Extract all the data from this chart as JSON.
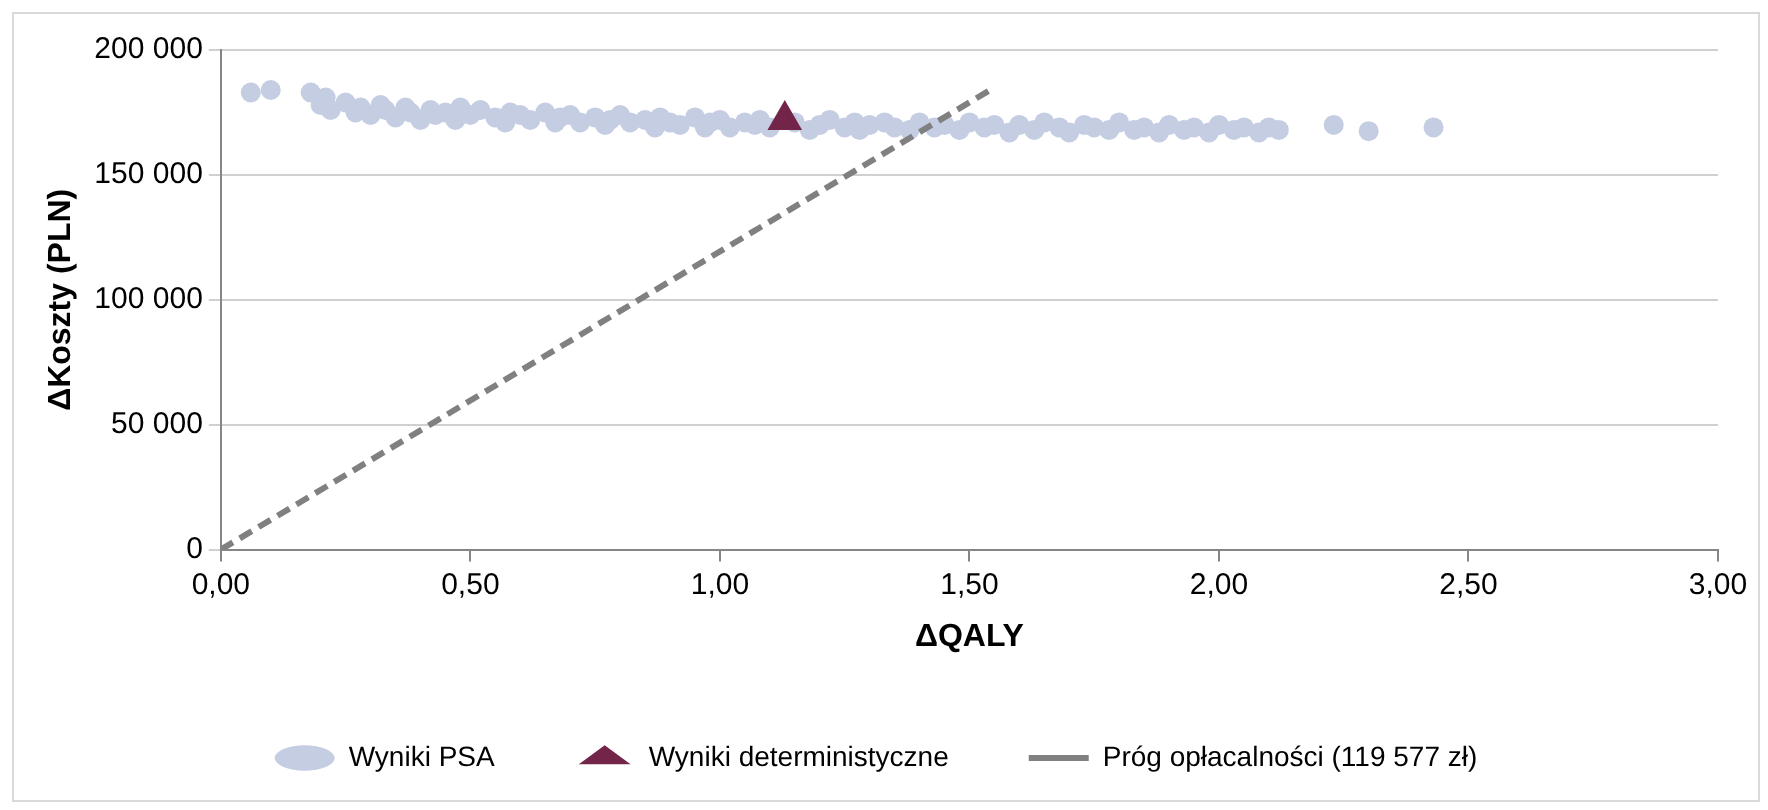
{
  "chart_data": {
    "type": "scatter",
    "xlabel": "ΔQALY",
    "ylabel": "ΔKoszty (PLN)",
    "xlim": [
      0,
      3
    ],
    "xticks": [
      {
        "value": 0,
        "label": "0,00"
      },
      {
        "value": 0.5,
        "label": "0,50"
      },
      {
        "value": 1,
        "label": "1,00"
      },
      {
        "value": 1.5,
        "label": "1,50"
      },
      {
        "value": 2,
        "label": "2,00"
      },
      {
        "value": 2.5,
        "label": "2,50"
      },
      {
        "value": 3,
        "label": "3,00"
      }
    ],
    "ylim": [
      0,
      200000
    ],
    "yticks": [
      0,
      {
        "value": 50000,
        "label": "50 000"
      },
      {
        "value": 100000,
        "label": "100 000"
      },
      {
        "value": 150000,
        "label": "150 000"
      },
      {
        "value": 200000,
        "label": "200 000"
      }
    ],
    "grid": "y",
    "legend": "bottom",
    "series": [
      {
        "name": "Wyniki PSA",
        "marker": "circle",
        "color": "#c5cde3",
        "x": [
          0.06,
          0.1,
          0.18,
          0.2,
          0.21,
          0.22,
          0.25,
          0.27,
          0.28,
          0.3,
          0.32,
          0.33,
          0.35,
          0.37,
          0.38,
          0.4,
          0.42,
          0.43,
          0.45,
          0.47,
          0.48,
          0.5,
          0.52,
          0.55,
          0.57,
          0.58,
          0.6,
          0.62,
          0.65,
          0.67,
          0.68,
          0.7,
          0.72,
          0.75,
          0.77,
          0.78,
          0.8,
          0.82,
          0.85,
          0.87,
          0.88,
          0.9,
          0.92,
          0.95,
          0.97,
          0.98,
          1.0,
          1.02,
          1.05,
          1.07,
          1.08,
          1.1,
          1.15,
          1.18,
          1.2,
          1.22,
          1.25,
          1.27,
          1.28,
          1.3,
          1.33,
          1.35,
          1.38,
          1.4,
          1.43,
          1.45,
          1.48,
          1.5,
          1.53,
          1.55,
          1.58,
          1.6,
          1.63,
          1.65,
          1.68,
          1.7,
          1.73,
          1.75,
          1.78,
          1.8,
          1.83,
          1.85,
          1.88,
          1.9,
          1.93,
          1.95,
          1.98,
          2.0,
          2.03,
          2.05,
          2.08,
          2.1,
          2.12,
          2.23,
          2.3,
          2.43
        ],
        "values": [
          183000,
          184000,
          183000,
          178000,
          181000,
          176000,
          179000,
          175000,
          177000,
          174000,
          178000,
          176000,
          173000,
          177000,
          175000,
          172000,
          176000,
          174000,
          175000,
          172000,
          177000,
          174000,
          176000,
          173000,
          171000,
          175000,
          174000,
          172000,
          175000,
          171000,
          173000,
          174000,
          171000,
          173000,
          170000,
          172000,
          174000,
          171000,
          172000,
          169000,
          173000,
          171000,
          170000,
          173000,
          169000,
          171000,
          172000,
          169000,
          171000,
          170000,
          172000,
          169000,
          171000,
          168000,
          170000,
          172000,
          169000,
          171000,
          168000,
          170000,
          171000,
          169000,
          168000,
          171000,
          169000,
          170000,
          168000,
          171000,
          169000,
          170000,
          167000,
          170000,
          168000,
          171000,
          169000,
          167000,
          170000,
          169000,
          168000,
          171000,
          168000,
          169000,
          167000,
          170000,
          168000,
          169000,
          167000,
          170000,
          168000,
          169000,
          167000,
          169000,
          168000,
          170000,
          167500,
          169000
        ]
      },
      {
        "name": "Wyniki deterministyczne",
        "marker": "triangle",
        "color": "#722548",
        "x": [
          1.13
        ],
        "values": [
          172000
        ]
      },
      {
        "name": "Próg opłacalności (119 577 zł)",
        "type": "line",
        "marker": "none",
        "line_style": "dashed",
        "color": "#808080",
        "x": [
          0,
          1.55
        ],
        "values": [
          0,
          185000
        ]
      }
    ]
  }
}
